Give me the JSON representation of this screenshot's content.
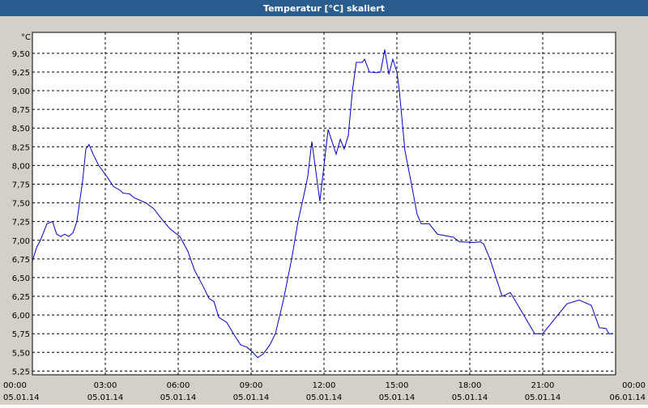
{
  "chart_data": {
    "type": "line",
    "title": "Temperatur [°C] skaliert",
    "y_unit": "°C",
    "x": [
      0,
      0.17,
      0.33,
      0.6,
      0.83,
      1,
      1.17,
      1.33,
      1.5,
      1.67,
      1.83,
      2.07,
      2.2,
      2.33,
      2.5,
      2.73,
      3.07,
      3.33,
      3.6,
      3.73,
      4,
      4.17,
      4.67,
      5,
      5.33,
      5.67,
      6.07,
      6.4,
      6.67,
      7,
      7.27,
      7.47,
      7.67,
      8,
      8.33,
      8.57,
      8.83,
      9.07,
      9.27,
      9.5,
      9.77,
      10,
      10.33,
      10.67,
      10.93,
      11.17,
      11.33,
      11.5,
      11.83,
      12.17,
      12.5,
      12.67,
      12.83,
      13,
      13.17,
      13.33,
      13.57,
      13.67,
      13.87,
      14.17,
      14.33,
      14.5,
      14.67,
      14.83,
      15,
      15.1,
      15.33,
      15.6,
      15.83,
      16,
      16.33,
      16.67,
      17.17,
      17.33,
      17.57,
      18.17,
      18.43,
      18.57,
      18.83,
      19.33,
      19.67,
      20,
      20.67,
      21,
      22,
      22.5,
      23,
      23.33,
      23.6,
      23.73,
      23.9
    ],
    "series": [
      {
        "color": "#0000cc",
        "values": [
          6.72,
          6.9,
          7.0,
          7.22,
          7.25,
          7.08,
          7.05,
          7.08,
          7.05,
          7.1,
          7.25,
          7.8,
          8.22,
          8.28,
          8.15,
          8.0,
          7.85,
          7.72,
          7.67,
          7.63,
          7.62,
          7.57,
          7.5,
          7.42,
          7.28,
          7.15,
          7.05,
          6.85,
          6.6,
          6.4,
          6.22,
          6.18,
          5.97,
          5.9,
          5.72,
          5.6,
          5.57,
          5.5,
          5.43,
          5.48,
          5.6,
          5.75,
          6.2,
          6.75,
          7.25,
          7.6,
          7.85,
          8.32,
          7.52,
          8.48,
          8.15,
          8.35,
          8.22,
          8.4,
          9.0,
          9.38,
          9.38,
          9.42,
          9.25,
          9.24,
          9.25,
          9.55,
          9.22,
          9.42,
          9.25,
          9.0,
          8.2,
          7.75,
          7.35,
          7.22,
          7.22,
          7.08,
          7.05,
          7.04,
          6.98,
          6.97,
          6.98,
          6.95,
          6.75,
          6.25,
          6.3,
          6.12,
          5.75,
          5.75,
          6.15,
          6.2,
          6.13,
          5.83,
          5.82,
          5.75,
          5.75
        ]
      }
    ],
    "xlim": [
      0,
      24
    ],
    "xticks": [
      {
        "value": 0,
        "label": "00:00"
      },
      {
        "value": 3,
        "label": "03:00"
      },
      {
        "value": 6,
        "label": "06:00"
      },
      {
        "value": 9,
        "label": "09:00"
      },
      {
        "value": 12,
        "label": "12:00"
      },
      {
        "value": 15,
        "label": "15:00"
      },
      {
        "value": 18,
        "label": "18:00"
      },
      {
        "value": 21,
        "label": "21:00"
      },
      {
        "value": 24,
        "label": "00:00"
      }
    ],
    "xtick_dates": [
      "05.01.14",
      "05.01.14",
      "05.01.14",
      "05.01.14",
      "05.01.14",
      "05.01.14",
      "05.01.14",
      "05.01.14",
      "06.01.14"
    ],
    "ylim": [
      5.2,
      9.78
    ],
    "yticks": [
      {
        "value": 5.25,
        "label": "5,25"
      },
      {
        "value": 5.5,
        "label": "5,50"
      },
      {
        "value": 5.75,
        "label": "5,75"
      },
      {
        "value": 6,
        "label": "6,00"
      },
      {
        "value": 6.25,
        "label": "6,25"
      },
      {
        "value": 6.5,
        "label": "6,50"
      },
      {
        "value": 6.75,
        "label": "6,75"
      },
      {
        "value": 7,
        "label": "7,00"
      },
      {
        "value": 7.25,
        "label": "7,25"
      },
      {
        "value": 7.5,
        "label": "7,50"
      },
      {
        "value": 7.75,
        "label": "7,75"
      },
      {
        "value": 8,
        "label": "8,00"
      },
      {
        "value": 8.25,
        "label": "8,25"
      },
      {
        "value": 8.5,
        "label": "8,50"
      },
      {
        "value": 8.75,
        "label": "8,75"
      },
      {
        "value": 9,
        "label": "9,00"
      },
      {
        "value": 9.25,
        "label": "9,25"
      },
      {
        "value": 9.5,
        "label": "9,50"
      }
    ],
    "grid": true
  }
}
